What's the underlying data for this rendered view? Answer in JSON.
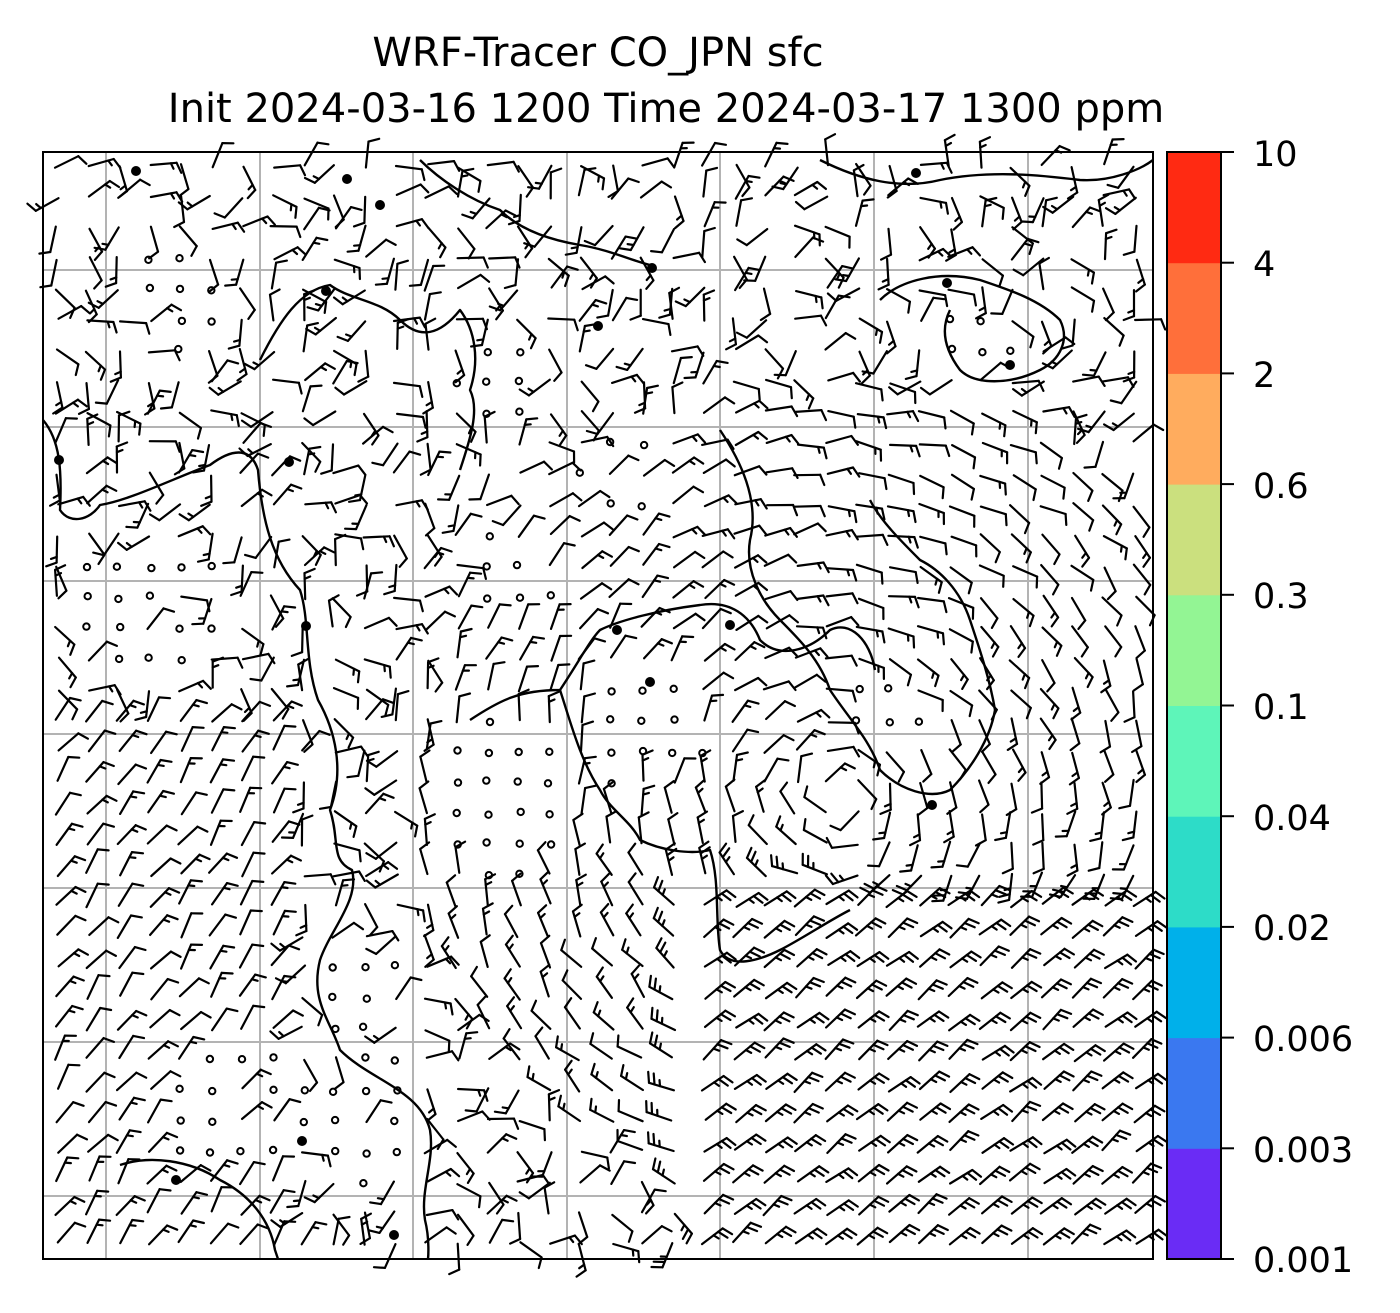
{
  "title": {
    "line1": "WRF-Tracer CO_JPN sfc",
    "line2": "Init 2024-03-16 1200 Time 2024-03-17 1300 ppm"
  },
  "colorbar": {
    "levels": [
      "0.001",
      "0.003",
      "0.006",
      "0.02",
      "0.04",
      "0.1",
      "0.3",
      "0.6",
      "2",
      "4",
      "10"
    ],
    "colors": [
      "#6a2cf5",
      "#3a78f0",
      "#00b0ea",
      "#2ddcc8",
      "#5ef5b9",
      "#93f594",
      "#cbe07e",
      "#ffac5e",
      "#ff6f3a",
      "#ff2a12"
    ]
  },
  "map": {
    "gridline_color": "#b3b3b3",
    "coastline_color": "#000000",
    "barb_color": "#000000"
  }
}
